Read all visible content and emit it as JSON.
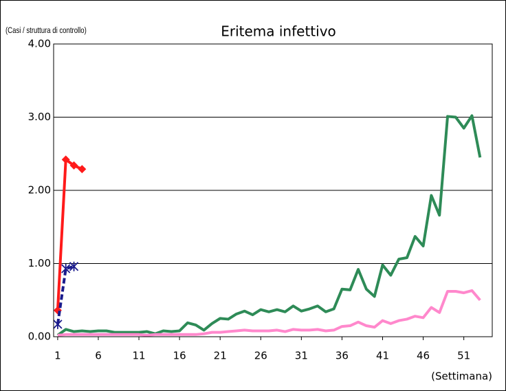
{
  "chart_data": {
    "type": "line",
    "title": "Eritema infettivo",
    "y_label": "(Casi / struttura di controllo)",
    "x_label": "(Settimana)",
    "xlim": [
      0.5,
      54.5
    ],
    "xticks": [
      1,
      6,
      11,
      16,
      21,
      26,
      31,
      36,
      41,
      46,
      51
    ],
    "ylim": [
      0,
      4
    ],
    "yticks": [
      {
        "value": 0,
        "label": "0.00"
      },
      {
        "value": 1,
        "label": "1.00"
      },
      {
        "value": 2,
        "label": "2.00"
      },
      {
        "value": 3,
        "label": "3.00"
      },
      {
        "value": 4,
        "label": "4.00"
      }
    ],
    "grid": true,
    "series": [
      {
        "color": "#2e8b57",
        "marker": "none",
        "dash": false,
        "x": [
          1,
          2,
          3,
          4,
          5,
          6,
          7,
          8,
          9,
          10,
          11,
          12,
          13,
          14,
          15,
          16,
          17,
          18,
          19,
          20,
          21,
          22,
          23,
          24,
          25,
          26,
          27,
          28,
          29,
          30,
          31,
          32,
          33,
          34,
          35,
          36,
          37,
          38,
          39,
          40,
          41,
          42,
          43,
          44,
          45,
          46,
          47,
          48,
          49,
          50,
          51,
          52,
          53
        ],
        "values": [
          0.02,
          0.1,
          0.07,
          0.08,
          0.07,
          0.08,
          0.08,
          0.06,
          0.06,
          0.06,
          0.06,
          0.07,
          0.04,
          0.08,
          0.07,
          0.08,
          0.19,
          0.16,
          0.09,
          0.18,
          0.25,
          0.24,
          0.31,
          0.35,
          0.3,
          0.37,
          0.34,
          0.37,
          0.34,
          0.42,
          0.35,
          0.38,
          0.42,
          0.34,
          0.38,
          0.65,
          0.64,
          0.92,
          0.65,
          0.55,
          0.98,
          0.84,
          1.06,
          1.08,
          1.37,
          1.24,
          1.93,
          1.66,
          3.01,
          3.0,
          2.85,
          3.02,
          2.45
        ]
      },
      {
        "color": "#ff88cc",
        "marker": "none",
        "dash": false,
        "x": [
          1,
          2,
          3,
          4,
          5,
          6,
          7,
          8,
          9,
          10,
          11,
          12,
          13,
          14,
          15,
          16,
          17,
          18,
          19,
          20,
          21,
          22,
          23,
          24,
          25,
          26,
          27,
          28,
          29,
          30,
          31,
          32,
          33,
          34,
          35,
          36,
          37,
          38,
          39,
          40,
          41,
          42,
          43,
          44,
          45,
          46,
          47,
          48,
          49,
          50,
          51,
          52,
          53
        ],
        "values": [
          0.02,
          0.03,
          0.03,
          0.03,
          0.03,
          0.03,
          0.03,
          0.03,
          0.03,
          0.03,
          0.03,
          0.02,
          0.03,
          0.03,
          0.03,
          0.03,
          0.03,
          0.03,
          0.04,
          0.06,
          0.06,
          0.07,
          0.08,
          0.09,
          0.08,
          0.08,
          0.08,
          0.09,
          0.07,
          0.1,
          0.09,
          0.09,
          0.1,
          0.08,
          0.09,
          0.14,
          0.15,
          0.2,
          0.15,
          0.13,
          0.22,
          0.18,
          0.22,
          0.24,
          0.28,
          0.26,
          0.4,
          0.33,
          0.62,
          0.62,
          0.6,
          0.63,
          0.5
        ]
      },
      {
        "color": "#ff1a1a",
        "marker": "diamond",
        "dash": false,
        "x": [
          1,
          2,
          3,
          4
        ],
        "values": [
          0.36,
          2.42,
          2.34,
          2.29
        ]
      },
      {
        "color": "#1a1a8c",
        "marker": "star",
        "dash": true,
        "x": [
          1,
          2,
          3
        ],
        "values": [
          0.17,
          0.93,
          0.96
        ]
      }
    ]
  }
}
